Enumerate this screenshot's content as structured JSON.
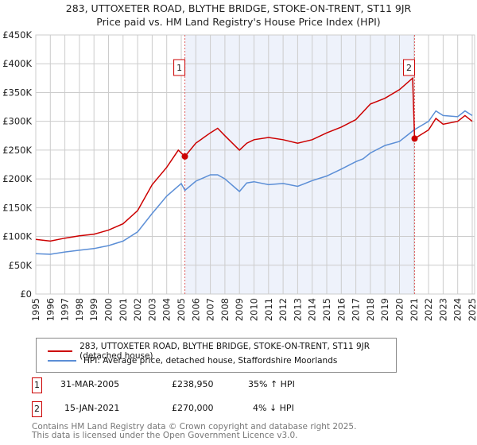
{
  "chart_data": {
    "type": "line",
    "title": "283, UTTOXETER ROAD, BLYTHE BRIDGE, STOKE-ON-TRENT, ST11 9JR",
    "subtitle": "Price paid vs. HM Land Registry's House Price Index (HPI)",
    "xlim": [
      1995,
      2025
    ],
    "ylim": [
      0,
      450000
    ],
    "x_ticks": [
      "1995",
      "1996",
      "1997",
      "1998",
      "1999",
      "2000",
      "2001",
      "2002",
      "2003",
      "2004",
      "2005",
      "2006",
      "2007",
      "2008",
      "2009",
      "2010",
      "2011",
      "2012",
      "2013",
      "2014",
      "2015",
      "2016",
      "2017",
      "2018",
      "2019",
      "2020",
      "2021",
      "2022",
      "2023",
      "2024",
      "2025"
    ],
    "y_ticks": [
      {
        "v": 0,
        "label": "£0"
      },
      {
        "v": 50000,
        "label": "£50K"
      },
      {
        "v": 100000,
        "label": "£100K"
      },
      {
        "v": 150000,
        "label": "£150K"
      },
      {
        "v": 200000,
        "label": "£200K"
      },
      {
        "v": 250000,
        "label": "£250K"
      },
      {
        "v": 300000,
        "label": "£300K"
      },
      {
        "v": 350000,
        "label": "£350K"
      },
      {
        "v": 400000,
        "label": "£400K"
      },
      {
        "v": 450000,
        "label": "£450K"
      }
    ],
    "grid": true,
    "shaded_range": [
      2005.25,
      2021.04
    ],
    "series": [
      {
        "name": "283, UTTOXETER ROAD, BLYTHE BRIDGE, STOKE-ON-TRENT, ST11 9JR (detached house)",
        "color": "#cc0000",
        "x": [
          1995,
          1996,
          1997,
          1998,
          1999,
          2000,
          2001,
          2002,
          2003,
          2004,
          2004.8,
          2005.25,
          2006,
          2007,
          2007.5,
          2008,
          2009,
          2009.5,
          2010,
          2011,
          2012,
          2013,
          2014,
          2015,
          2016,
          2017,
          2018,
          2019,
          2020,
          2020.9,
          2021.04,
          2022,
          2022.5,
          2023,
          2024,
          2024.5,
          2025
        ],
        "y": [
          95000,
          92000,
          97000,
          101000,
          104000,
          111000,
          122000,
          145000,
          190000,
          220000,
          250000,
          238950,
          262000,
          280000,
          288000,
          275000,
          250000,
          262000,
          268000,
          272000,
          268000,
          262000,
          268000,
          280000,
          290000,
          303000,
          330000,
          340000,
          355000,
          375000,
          270000,
          285000,
          305000,
          295000,
          300000,
          310000,
          300000
        ]
      },
      {
        "name": "HPI: Average price, detached house, Staffordshire Moorlands",
        "color": "#5b8ed6",
        "x": [
          1995,
          1996,
          1997,
          1998,
          1999,
          2000,
          2001,
          2002,
          2003,
          2004,
          2005,
          2005.25,
          2006,
          2007,
          2007.5,
          2008,
          2009,
          2009.5,
          2010,
          2011,
          2012,
          2013,
          2014,
          2015,
          2016,
          2017,
          2017.5,
          2018,
          2019,
          2020,
          2021,
          2022,
          2022.5,
          2023,
          2024,
          2024.5,
          2025
        ],
        "y": [
          70000,
          69000,
          73000,
          76000,
          79000,
          84000,
          92000,
          108000,
          140000,
          170000,
          192000,
          180000,
          196000,
          207000,
          207000,
          200000,
          178000,
          193000,
          195000,
          190000,
          192000,
          187000,
          197000,
          205000,
          217000,
          230000,
          235000,
          245000,
          258000,
          265000,
          285000,
          300000,
          318000,
          310000,
          308000,
          318000,
          310000
        ]
      }
    ],
    "annotations": [
      {
        "label": "1",
        "x": 2005.25,
        "y": 238950
      },
      {
        "label": "2",
        "x": 2021.04,
        "y": 270000
      }
    ]
  },
  "legend": {
    "property": "283, UTTOXETER ROAD, BLYTHE BRIDGE, STOKE-ON-TRENT, ST11 9JR (detached house)",
    "hpi": "HPI: Average price, detached house, Staffordshire Moorlands"
  },
  "transactions": [
    {
      "num": "1",
      "date": "31-MAR-2005",
      "price": "£238,950",
      "hpi": "35% ↑ HPI"
    },
    {
      "num": "2",
      "date": "15-JAN-2021",
      "price": "£270,000",
      "hpi": "4% ↓ HPI"
    }
  ],
  "footer": {
    "line1": "Contains HM Land Registry data © Crown copyright and database right 2025.",
    "line2": "This data is licensed under the Open Government Licence v3.0."
  }
}
